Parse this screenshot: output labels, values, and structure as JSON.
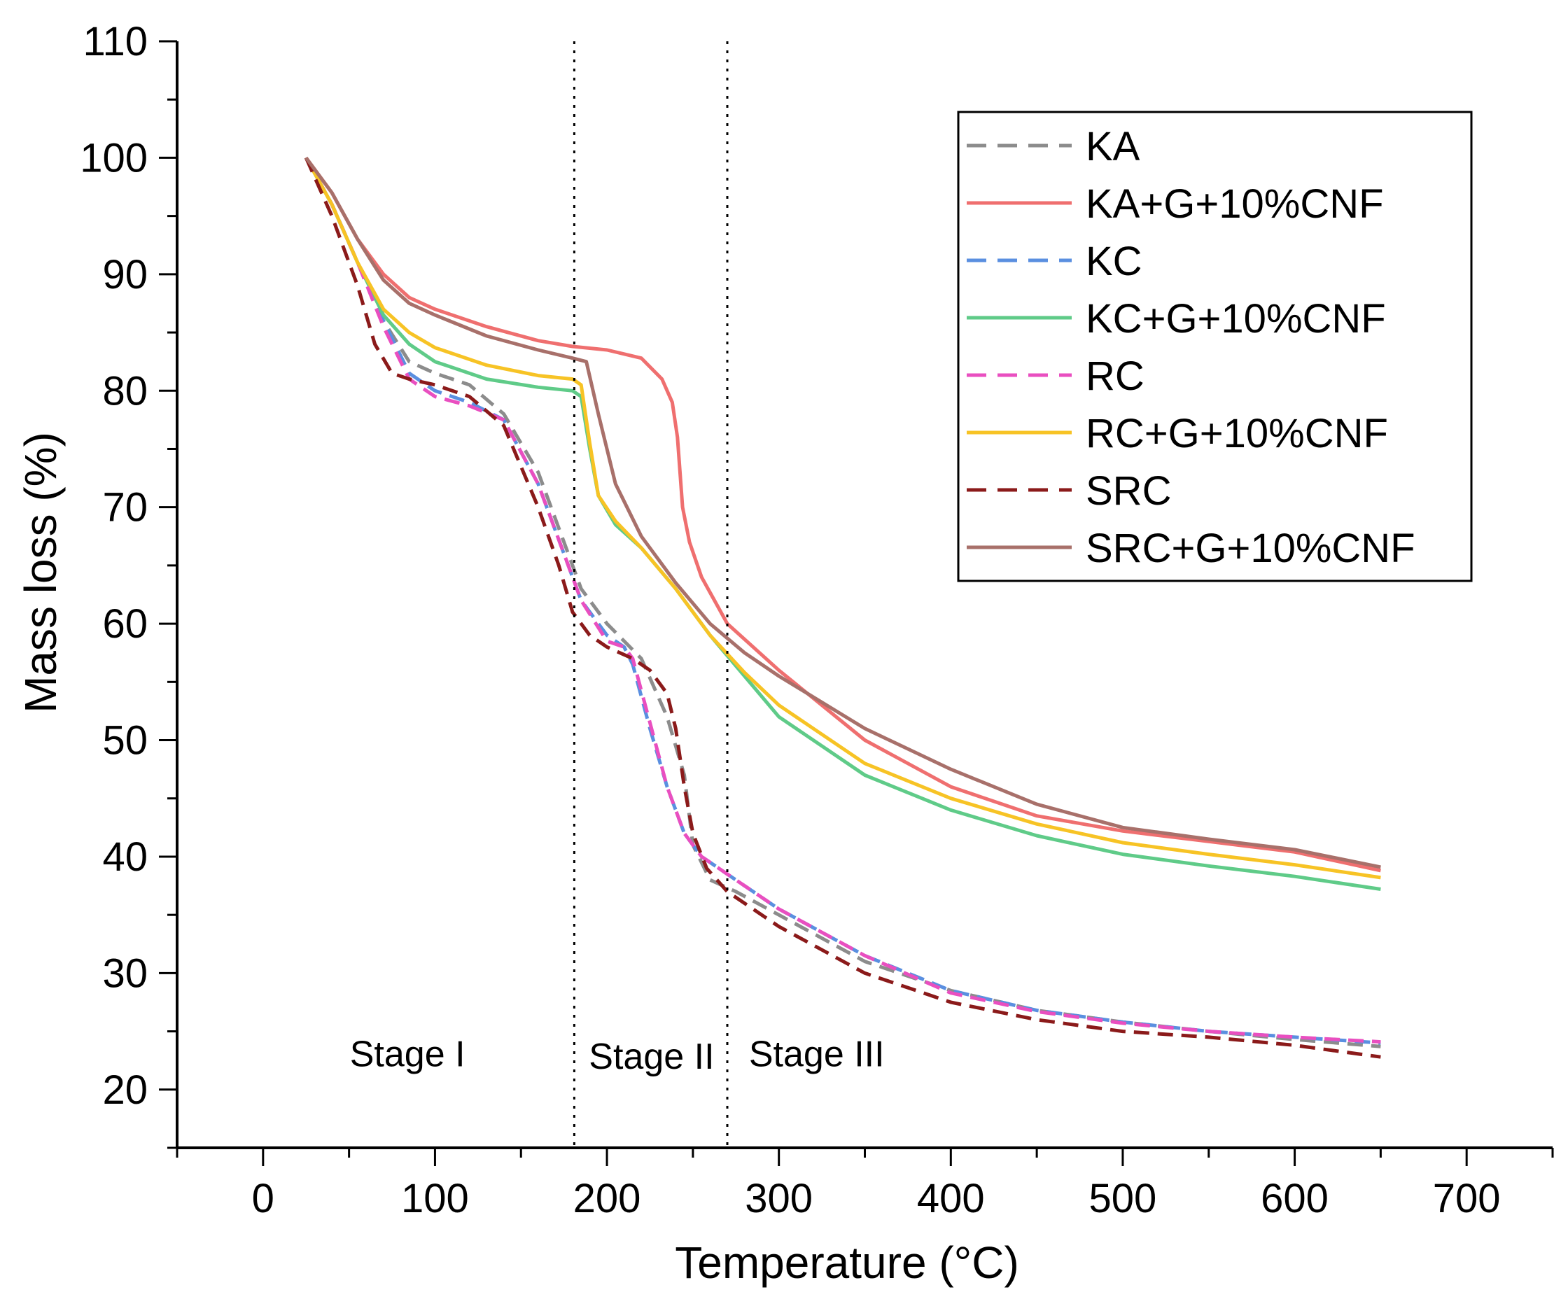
{
  "chart_data": {
    "type": "line",
    "title": "",
    "xlabel": "Temperature (°C)",
    "ylabel": "Mass loss (%)",
    "xlim": [
      -50,
      750
    ],
    "ylim": [
      15,
      110
    ],
    "xticks": [
      0,
      100,
      200,
      300,
      400,
      500,
      600,
      700
    ],
    "yticks": [
      20,
      30,
      40,
      50,
      60,
      70,
      80,
      90,
      100,
      110
    ],
    "grid": false,
    "legend_position": "top-right",
    "vlines": [
      {
        "name": "stage-boundary-1",
        "x": 181
      },
      {
        "name": "stage-boundary-2",
        "x": 270
      }
    ],
    "annotations": [
      {
        "name": "stage-1-label",
        "text": "Stage I",
        "x": 84,
        "y": 22
      },
      {
        "name": "stage-2-label",
        "text": "Stage II",
        "x": 226,
        "y": 21.8
      },
      {
        "name": "stage-3-label",
        "text": "Stage III",
        "x": 322,
        "y": 22
      }
    ],
    "series": [
      {
        "name": "KA",
        "color": "#8c8c8c",
        "dash": true,
        "x": [
          25,
          40,
          55,
          70,
          85,
          100,
          120,
          140,
          160,
          175,
          185,
          200,
          220,
          235,
          245,
          250,
          260,
          275,
          300,
          350,
          400,
          450,
          500,
          550,
          600,
          650
        ],
        "y": [
          100,
          96,
          91,
          86,
          82.5,
          81.5,
          80.5,
          78,
          73,
          67,
          63,
          60,
          57,
          52,
          47,
          41,
          38,
          37,
          35,
          31,
          28.5,
          26.8,
          25.8,
          25,
          24.3,
          23.7
        ]
      },
      {
        "name": "KA+G+10%CNF",
        "color": "#ef6f6f",
        "dash": false,
        "x": [
          25,
          40,
          55,
          70,
          85,
          100,
          130,
          160,
          180,
          200,
          220,
          232,
          238,
          241,
          244,
          248,
          255,
          270,
          300,
          350,
          400,
          450,
          500,
          550,
          600,
          650
        ],
        "y": [
          100,
          97,
          93,
          90,
          88,
          87,
          85.5,
          84.3,
          83.8,
          83.5,
          82.8,
          81,
          79,
          76,
          70,
          67,
          64,
          60,
          56,
          50,
          46,
          43.5,
          42.2,
          41.3,
          40.4,
          38.8
        ]
      },
      {
        "name": "KC",
        "color": "#5a8fe0",
        "dash": true,
        "x": [
          25,
          40,
          55,
          70,
          85,
          100,
          120,
          140,
          160,
          175,
          185,
          200,
          210,
          215,
          225,
          235,
          245,
          255,
          270,
          300,
          350,
          400,
          450,
          500,
          550,
          600,
          650
        ],
        "y": [
          100,
          96,
          91,
          86,
          81.5,
          80,
          79,
          77.5,
          72,
          66,
          62,
          59,
          58,
          56.5,
          51,
          46,
          42,
          40,
          38.5,
          35.5,
          31.5,
          28.5,
          26.8,
          25.8,
          25,
          24.5,
          24
        ]
      },
      {
        "name": "KC+G+10%CNF",
        "color": "#5fcb88",
        "dash": false,
        "x": [
          25,
          40,
          55,
          70,
          85,
          100,
          130,
          160,
          180,
          185,
          190,
          195,
          205,
          220,
          240,
          260,
          280,
          300,
          350,
          400,
          450,
          500,
          550,
          600,
          650
        ],
        "y": [
          100,
          96,
          91,
          86.5,
          84,
          82.5,
          81,
          80.3,
          80,
          79.5,
          75,
          71,
          68.5,
          66.5,
          63,
          59,
          55.5,
          52,
          47,
          44,
          41.8,
          40.2,
          39.2,
          38.3,
          37.2
        ]
      },
      {
        "name": "RC",
        "color": "#e94fc0",
        "dash": true,
        "x": [
          25,
          40,
          55,
          70,
          85,
          100,
          120,
          140,
          160,
          175,
          185,
          200,
          210,
          215,
          225,
          235,
          245,
          255,
          270,
          300,
          350,
          400,
          450,
          500,
          550,
          600,
          650
        ],
        "y": [
          100,
          96,
          91,
          85.5,
          81,
          79.5,
          78.7,
          77.5,
          72,
          66,
          62,
          58.5,
          58,
          57,
          51.5,
          46,
          42,
          40,
          38.5,
          35.5,
          31.5,
          28.3,
          26.7,
          25.7,
          25,
          24.5,
          24.1
        ]
      },
      {
        "name": "RC+G+10%CNF",
        "color": "#f7c325",
        "dash": false,
        "x": [
          25,
          40,
          55,
          70,
          85,
          100,
          130,
          160,
          180,
          185,
          190,
          195,
          205,
          220,
          240,
          260,
          280,
          300,
          350,
          400,
          450,
          500,
          550,
          600,
          650
        ],
        "y": [
          100,
          96,
          91,
          87,
          85,
          83.7,
          82.2,
          81.3,
          81,
          80.5,
          75.5,
          71,
          68.8,
          66.5,
          63,
          59,
          55.8,
          53,
          48,
          45,
          42.8,
          41.2,
          40.2,
          39.3,
          38.2
        ]
      },
      {
        "name": "SRC",
        "color": "#8b1a1a",
        "dash": true,
        "x": [
          25,
          40,
          55,
          65,
          75,
          85,
          100,
          120,
          140,
          160,
          172,
          180,
          190,
          200,
          215,
          225,
          235,
          240,
          245,
          250,
          258,
          270,
          300,
          350,
          400,
          450,
          500,
          550,
          600,
          650
        ],
        "y": [
          100,
          95,
          89,
          84,
          81.5,
          81,
          80.5,
          79.5,
          77,
          70,
          65,
          61,
          59,
          58,
          57,
          56,
          54,
          51,
          46,
          42,
          39,
          37,
          34,
          30,
          27.5,
          26,
          25,
          24.5,
          23.8,
          22.8
        ]
      },
      {
        "name": "SRC+G+10%CNF",
        "color": "#a8706a",
        "dash": false,
        "x": [
          25,
          40,
          55,
          70,
          85,
          100,
          130,
          160,
          180,
          188,
          195,
          205,
          220,
          240,
          260,
          280,
          300,
          350,
          400,
          450,
          500,
          550,
          600,
          650
        ],
        "y": [
          100,
          97,
          93,
          89.5,
          87.5,
          86.5,
          84.7,
          83.5,
          82.8,
          82.5,
          78,
          72,
          67.5,
          63.5,
          60,
          57.5,
          55.5,
          51,
          47.5,
          44.5,
          42.5,
          41.5,
          40.6,
          39.1
        ]
      }
    ]
  }
}
